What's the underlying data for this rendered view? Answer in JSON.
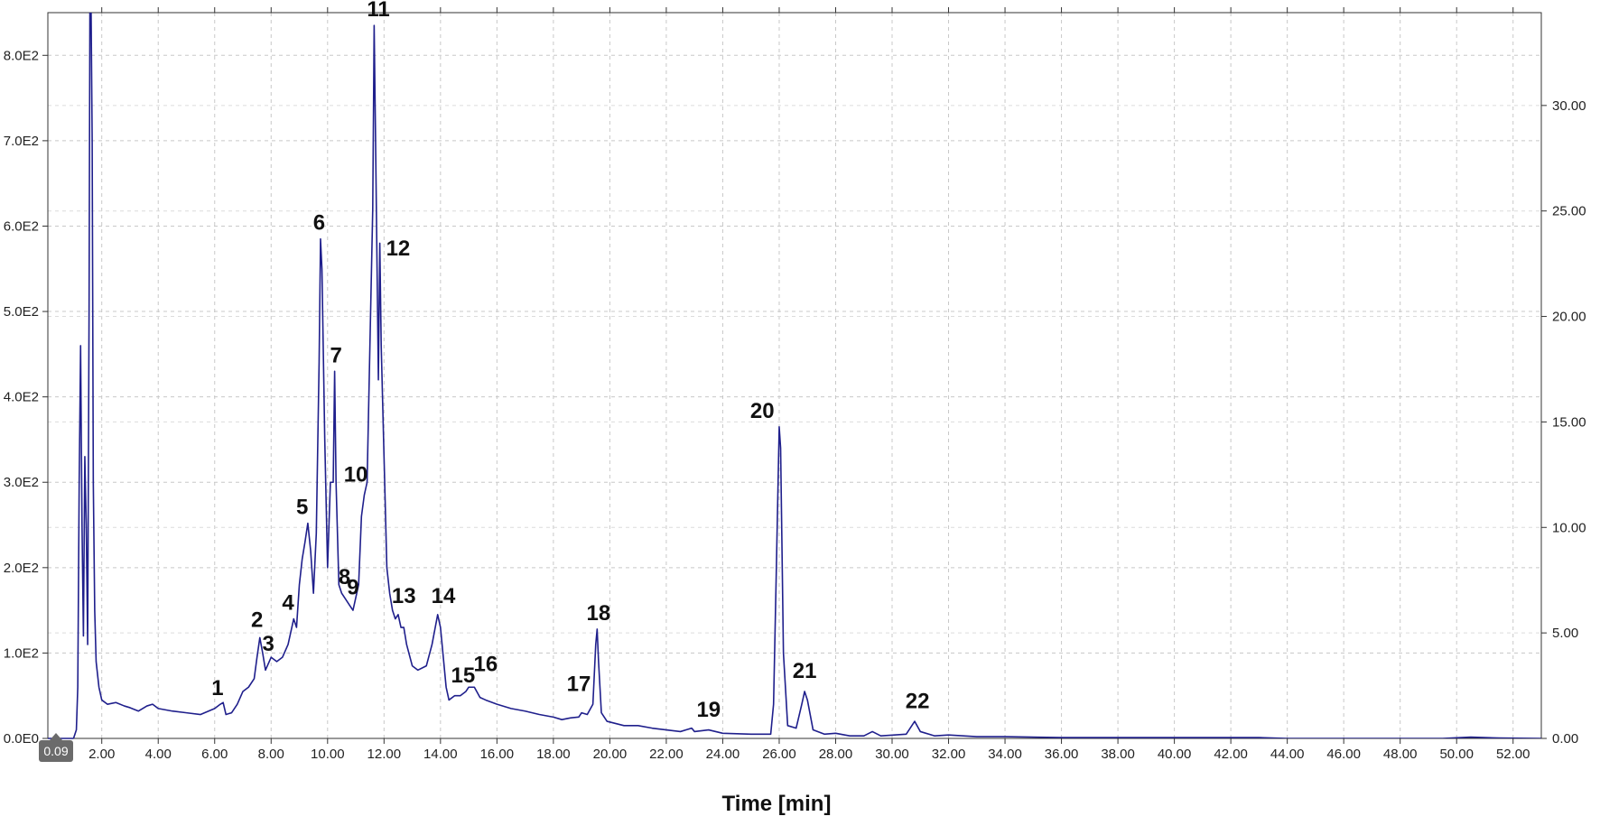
{
  "chart_data": {
    "type": "line",
    "xlabel": "Time [min]",
    "ylabel": "",
    "y2label": "",
    "xlim": [
      0.09,
      53.0
    ],
    "ylim": [
      0,
      850
    ],
    "y2lim": [
      0,
      34.4
    ],
    "grid": true,
    "x_ticks": [
      "2.00",
      "4.00",
      "6.00",
      "8.00",
      "10.00",
      "12.00",
      "14.00",
      "16.00",
      "18.00",
      "20.00",
      "22.00",
      "24.00",
      "26.00",
      "28.00",
      "30.00",
      "32.00",
      "34.00",
      "36.00",
      "38.00",
      "40.00",
      "42.00",
      "44.00",
      "46.00",
      "48.00",
      "50.00",
      "52.00"
    ],
    "y_ticks": [
      "0.0E0",
      "1.0E2",
      "2.0E2",
      "3.0E2",
      "4.0E2",
      "5.0E2",
      "6.0E2",
      "7.0E2",
      "8.0E2"
    ],
    "y2_ticks": [
      "0.00",
      "5.00",
      "10.00",
      "15.00",
      "20.00",
      "25.00",
      "30.00"
    ],
    "cursor_label": "0.09",
    "series": [
      {
        "color": "#1f1f8c",
        "points": [
          [
            1.0,
            0
          ],
          [
            1.1,
            10
          ],
          [
            1.15,
            60
          ],
          [
            1.2,
            300
          ],
          [
            1.25,
            460
          ],
          [
            1.3,
            250
          ],
          [
            1.35,
            120
          ],
          [
            1.4,
            330
          ],
          [
            1.45,
            250
          ],
          [
            1.5,
            110
          ],
          [
            1.55,
            500
          ],
          [
            1.58,
            860
          ],
          [
            1.62,
            860
          ],
          [
            1.66,
            700
          ],
          [
            1.7,
            300
          ],
          [
            1.75,
            150
          ],
          [
            1.8,
            90
          ],
          [
            1.9,
            60
          ],
          [
            2.0,
            45
          ],
          [
            2.2,
            40
          ],
          [
            2.5,
            42
          ],
          [
            2.8,
            38
          ],
          [
            3.0,
            36
          ],
          [
            3.3,
            32
          ],
          [
            3.6,
            38
          ],
          [
            3.8,
            40
          ],
          [
            4.0,
            35
          ],
          [
            4.5,
            32
          ],
          [
            5.0,
            30
          ],
          [
            5.5,
            28
          ],
          [
            6.0,
            35
          ],
          [
            6.2,
            40
          ],
          [
            6.3,
            42
          ],
          [
            6.4,
            28
          ],
          [
            6.6,
            30
          ],
          [
            6.8,
            40
          ],
          [
            7.0,
            55
          ],
          [
            7.2,
            60
          ],
          [
            7.4,
            70
          ],
          [
            7.5,
            95
          ],
          [
            7.6,
            118
          ],
          [
            7.7,
            100
          ],
          [
            7.8,
            80
          ],
          [
            8.0,
            95
          ],
          [
            8.2,
            90
          ],
          [
            8.4,
            95
          ],
          [
            8.6,
            110
          ],
          [
            8.8,
            140
          ],
          [
            8.9,
            130
          ],
          [
            9.0,
            180
          ],
          [
            9.1,
            210
          ],
          [
            9.2,
            230
          ],
          [
            9.3,
            252
          ],
          [
            9.4,
            220
          ],
          [
            9.5,
            170
          ],
          [
            9.6,
            240
          ],
          [
            9.7,
            440
          ],
          [
            9.75,
            585
          ],
          [
            9.8,
            550
          ],
          [
            9.9,
            350
          ],
          [
            10.0,
            200
          ],
          [
            10.1,
            300
          ],
          [
            10.2,
            300
          ],
          [
            10.25,
            430
          ],
          [
            10.3,
            300
          ],
          [
            10.4,
            180
          ],
          [
            10.5,
            170
          ],
          [
            10.6,
            165
          ],
          [
            10.7,
            160
          ],
          [
            10.8,
            155
          ],
          [
            10.9,
            150
          ],
          [
            11.0,
            165
          ],
          [
            11.1,
            180
          ],
          [
            11.2,
            260
          ],
          [
            11.3,
            285
          ],
          [
            11.4,
            300
          ],
          [
            11.5,
            460
          ],
          [
            11.6,
            620
          ],
          [
            11.65,
            835
          ],
          [
            11.7,
            700
          ],
          [
            11.8,
            420
          ],
          [
            11.85,
            580
          ],
          [
            11.9,
            460
          ],
          [
            12.0,
            330
          ],
          [
            12.1,
            200
          ],
          [
            12.2,
            170
          ],
          [
            12.3,
            150
          ],
          [
            12.4,
            140
          ],
          [
            12.5,
            145
          ],
          [
            12.6,
            130
          ],
          [
            12.7,
            130
          ],
          [
            12.8,
            110
          ],
          [
            13.0,
            85
          ],
          [
            13.2,
            80
          ],
          [
            13.5,
            85
          ],
          [
            13.7,
            110
          ],
          [
            13.9,
            145
          ],
          [
            14.0,
            130
          ],
          [
            14.2,
            60
          ],
          [
            14.3,
            45
          ],
          [
            14.5,
            50
          ],
          [
            14.7,
            50
          ],
          [
            14.9,
            55
          ],
          [
            15.0,
            60
          ],
          [
            15.2,
            60
          ],
          [
            15.4,
            48
          ],
          [
            15.6,
            45
          ],
          [
            16.0,
            40
          ],
          [
            16.5,
            35
          ],
          [
            17.0,
            32
          ],
          [
            17.5,
            28
          ],
          [
            18.0,
            25
          ],
          [
            18.3,
            22
          ],
          [
            18.6,
            24
          ],
          [
            18.9,
            25
          ],
          [
            19.0,
            30
          ],
          [
            19.2,
            28
          ],
          [
            19.4,
            40
          ],
          [
            19.5,
            110
          ],
          [
            19.55,
            128
          ],
          [
            19.6,
            90
          ],
          [
            19.7,
            30
          ],
          [
            19.9,
            20
          ],
          [
            20.5,
            15
          ],
          [
            21.0,
            15
          ],
          [
            21.5,
            12
          ],
          [
            22.0,
            10
          ],
          [
            22.5,
            8
          ],
          [
            22.9,
            12
          ],
          [
            23.0,
            8
          ],
          [
            23.5,
            10
          ],
          [
            24.0,
            6
          ],
          [
            25.0,
            5
          ],
          [
            25.7,
            5
          ],
          [
            25.8,
            40
          ],
          [
            25.9,
            200
          ],
          [
            26.0,
            365
          ],
          [
            26.05,
            340
          ],
          [
            26.15,
            100
          ],
          [
            26.3,
            15
          ],
          [
            26.6,
            12
          ],
          [
            26.8,
            40
          ],
          [
            26.9,
            55
          ],
          [
            27.0,
            45
          ],
          [
            27.2,
            10
          ],
          [
            27.6,
            5
          ],
          [
            28.0,
            6
          ],
          [
            28.5,
            3
          ],
          [
            29.0,
            3
          ],
          [
            29.3,
            8
          ],
          [
            29.6,
            3
          ],
          [
            30.5,
            5
          ],
          [
            30.8,
            20
          ],
          [
            31.0,
            8
          ],
          [
            31.5,
            3
          ],
          [
            32.0,
            4
          ],
          [
            33.0,
            2
          ],
          [
            34.0,
            2
          ],
          [
            36.0,
            1
          ],
          [
            40.0,
            1
          ],
          [
            43.0,
            1
          ],
          [
            44.0,
            0
          ],
          [
            49.5,
            0
          ],
          [
            50.5,
            1.5
          ],
          [
            51.5,
            0.5
          ],
          [
            53.0,
            0
          ]
        ]
      }
    ],
    "annotations": [
      {
        "text": "1",
        "x": 6.1,
        "y": 40
      },
      {
        "text": "2",
        "x": 7.5,
        "y": 120
      },
      {
        "text": "3",
        "x": 7.9,
        "y": 92
      },
      {
        "text": "4",
        "x": 8.6,
        "y": 140
      },
      {
        "text": "5",
        "x": 9.1,
        "y": 252
      },
      {
        "text": "6",
        "x": 9.7,
        "y": 585
      },
      {
        "text": "7",
        "x": 10.3,
        "y": 430
      },
      {
        "text": "8",
        "x": 10.6,
        "y": 170
      },
      {
        "text": "9",
        "x": 10.9,
        "y": 158
      },
      {
        "text": "10",
        "x": 11.0,
        "y": 290
      },
      {
        "text": "11",
        "x": 11.8,
        "y": 835
      },
      {
        "text": "12",
        "x": 12.5,
        "y": 555
      },
      {
        "text": "13",
        "x": 12.7,
        "y": 148
      },
      {
        "text": "14",
        "x": 14.1,
        "y": 148
      },
      {
        "text": "15",
        "x": 14.8,
        "y": 55
      },
      {
        "text": "16",
        "x": 15.6,
        "y": 68
      },
      {
        "text": "17",
        "x": 18.9,
        "y": 45
      },
      {
        "text": "18",
        "x": 19.6,
        "y": 128
      },
      {
        "text": "19",
        "x": 23.5,
        "y": 15
      },
      {
        "text": "20",
        "x": 25.4,
        "y": 365
      },
      {
        "text": "21",
        "x": 26.9,
        "y": 60
      },
      {
        "text": "22",
        "x": 30.9,
        "y": 25
      }
    ]
  }
}
